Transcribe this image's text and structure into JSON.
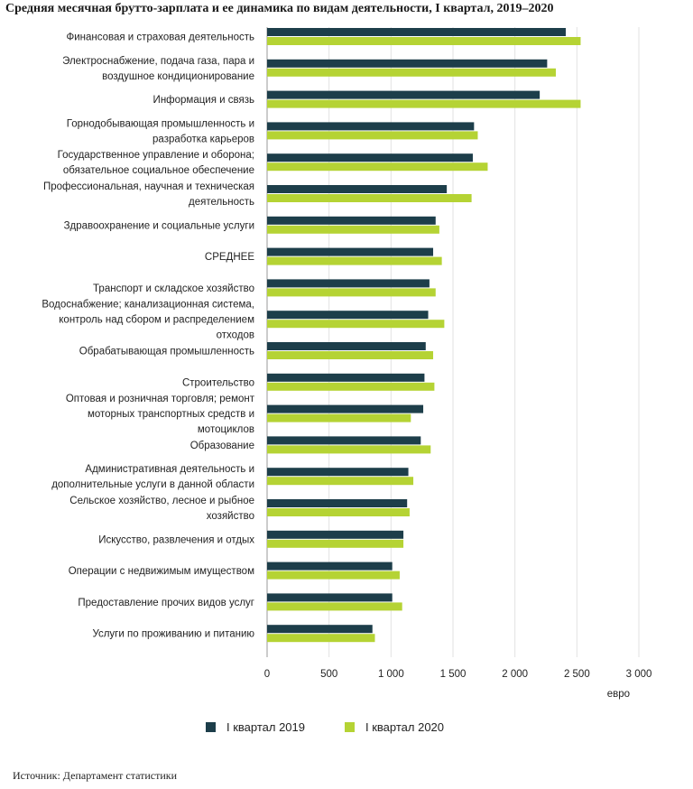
{
  "chart_data": {
    "type": "bar",
    "orientation": "horizontal",
    "title": "Средняя месячная брутто-зарплата и ее динамика по видам деятельности, I квартал, 2019–2020",
    "xlabel": "евро",
    "ylabel": "",
    "xlim": [
      0,
      3000
    ],
    "xticks": [
      "0",
      "500",
      "1 000",
      "1 500",
      "2 000",
      "2 500",
      "3 000"
    ],
    "grid": true,
    "legend_position": "bottom",
    "categories": [
      [
        "Финансовая и страховая деятельность"
      ],
      [
        "Электроснабжение, подача газа, пара и",
        "воздушное кондиционирование"
      ],
      [
        "Информация и связь"
      ],
      [
        "Горнодобывающая промышленность и",
        "разработка карьеров"
      ],
      [
        "Государственное управление и оборона;",
        "обязательное социальное обеспечение"
      ],
      [
        "Профессиональная, научная и техническая",
        "деятельность"
      ],
      [
        "Здравоохранение и социальные услуги"
      ],
      [
        "СРЕДНЕЕ"
      ],
      [
        "Транспорт и складское хозяйство"
      ],
      [
        "Водоснабжение; канализационная система,",
        "контроль над сбором и распределением",
        "отходов"
      ],
      [
        "Обрабатывающая промышленность"
      ],
      [
        "Строительство"
      ],
      [
        "Оптовая и розничная торговля; ремонт",
        "моторных транспортных средств и",
        "мотоциклов"
      ],
      [
        "Образование"
      ],
      [
        "Административная деятельность и",
        "дополнительные услуги в данной области"
      ],
      [
        "Сельское хозяйство, лесное и рыбное",
        "хозяйство"
      ],
      [
        "Искусство, развлечения и отдых"
      ],
      [
        "Операции с недвижимым имуществом"
      ],
      [
        "Предоставление прочих видов услуг"
      ],
      [
        "Услуги по проживанию и питанию"
      ]
    ],
    "series": [
      {
        "name": "I квартал 2019",
        "color": "#1d3e4a",
        "values": [
          2410,
          2260,
          2200,
          1670,
          1660,
          1450,
          1360,
          1340,
          1310,
          1300,
          1280,
          1270,
          1260,
          1240,
          1140,
          1130,
          1100,
          1010,
          1010,
          850
        ]
      },
      {
        "name": "I квартал 2020",
        "color": "#b5d334",
        "values": [
          2530,
          2330,
          2530,
          1700,
          1780,
          1650,
          1390,
          1410,
          1360,
          1430,
          1340,
          1350,
          1160,
          1320,
          1180,
          1150,
          1100,
          1070,
          1090,
          870
        ]
      }
    ]
  },
  "source": "Источник: Департамент статистики"
}
